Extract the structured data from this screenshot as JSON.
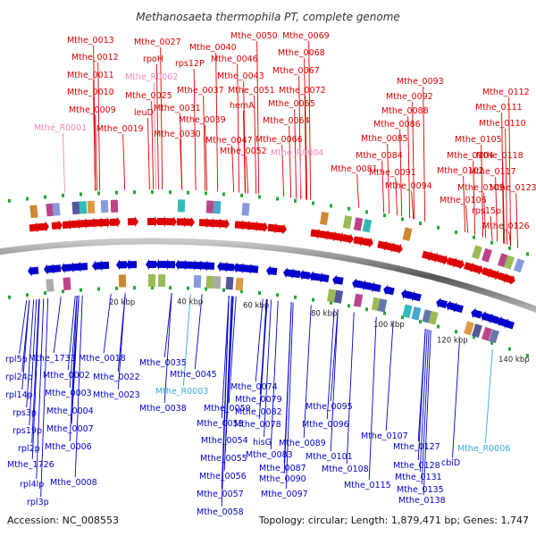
{
  "title": "Methanosaeta thermophila PT, complete genome",
  "accession": "Accession: NC_008553",
  "topology": "Topology: circular; Length: 1,879,471 bp; Genes: 1,747",
  "colors": {
    "top": "#dd0000",
    "bottom": "#0000cc",
    "rna_top": "#ee88bb",
    "rna_bottom": "#33aadd"
  },
  "kbp_ticks": [
    "20 kbp",
    "40 kbp",
    "60 kbp",
    "80 kbp",
    "100 kbp",
    "120 kbp",
    "140 kbp"
  ],
  "top_labels": [
    {
      "text": "Mthe_0013"
    },
    {
      "text": "Mthe_0012"
    },
    {
      "text": "Mthe_0011"
    },
    {
      "text": "Mthe_0010"
    },
    {
      "text": "Mthe_0009"
    },
    {
      "text": "Mthe_R0001",
      "rna": true
    },
    {
      "text": "Mthe_0019"
    },
    {
      "text": "Mthe_0027"
    },
    {
      "text": "rpoH"
    },
    {
      "text": "Mthe_R0002",
      "rna": true
    },
    {
      "text": "Mthe_0025"
    },
    {
      "text": "leuD"
    },
    {
      "text": "Mthe_0031"
    },
    {
      "text": "Mthe_0030"
    },
    {
      "text": "Mthe_0040"
    },
    {
      "text": "rps12P"
    },
    {
      "text": "Mthe_0037"
    },
    {
      "text": "Mthe_0039"
    },
    {
      "text": "Mthe_0046"
    },
    {
      "text": "Mthe_0043"
    },
    {
      "text": "Mthe_0047"
    },
    {
      "text": "Mthe_0050"
    },
    {
      "text": "Mthe_0051"
    },
    {
      "text": "hemA"
    },
    {
      "text": "Mthe_0052"
    },
    {
      "text": "Mthe_0069"
    },
    {
      "text": "Mthe_0068"
    },
    {
      "text": "Mthe_0067"
    },
    {
      "text": "Mthe_0072"
    },
    {
      "text": "Mthe_0065"
    },
    {
      "text": "Mthe_0064"
    },
    {
      "text": "Mthe_0066"
    },
    {
      "text": "Mthe_R0004",
      "rna": true
    },
    {
      "text": "Mthe_0093"
    },
    {
      "text": "Mthe_0092"
    },
    {
      "text": "Mthe_0088"
    },
    {
      "text": "Mthe_0086"
    },
    {
      "text": "Mthe_0085"
    },
    {
      "text": "Mthe_0084"
    },
    {
      "text": "Mthe_0081"
    },
    {
      "text": "Mthe_0091"
    },
    {
      "text": "Mthe_0094"
    },
    {
      "text": "Mthe_0112"
    },
    {
      "text": "Mthe_0111"
    },
    {
      "text": "Mthe_0110"
    },
    {
      "text": "Mthe_0105"
    },
    {
      "text": "Mthe_0104"
    },
    {
      "text": "Mthe_0118"
    },
    {
      "text": "Mthe_0102"
    },
    {
      "text": "Mthe_0117"
    },
    {
      "text": "Mthe_0109"
    },
    {
      "text": "Mthe_0123"
    },
    {
      "text": "Mthe_0106"
    },
    {
      "text": "rps15p"
    },
    {
      "text": "Mthe_0126"
    }
  ],
  "bottom_labels": [
    {
      "text": "rpl5p"
    },
    {
      "text": "rpl24p"
    },
    {
      "text": "rpl14p"
    },
    {
      "text": "rps3p"
    },
    {
      "text": "rps19p"
    },
    {
      "text": "rpl2p"
    },
    {
      "text": "Mthe_1726"
    },
    {
      "text": "rpl4lp"
    },
    {
      "text": "rpl3p"
    },
    {
      "text": "Mthe_1733"
    },
    {
      "text": "Mthe_0002"
    },
    {
      "text": "Mthe_0003"
    },
    {
      "text": "Mthe_0004"
    },
    {
      "text": "Mthe_0007"
    },
    {
      "text": "Mthe_0006"
    },
    {
      "text": "Mthe_0008"
    },
    {
      "text": "Mthe_0018"
    },
    {
      "text": "Mthe_0022"
    },
    {
      "text": "Mthe_0023"
    },
    {
      "text": "Mthe_0035"
    },
    {
      "text": "Mthe_0045"
    },
    {
      "text": "Mthe_R0003",
      "rna": true
    },
    {
      "text": "Mthe_0038"
    },
    {
      "text": "Mthe_0059"
    },
    {
      "text": "Mthe_0053"
    },
    {
      "text": "Mthe_0054"
    },
    {
      "text": "Mthe_0055"
    },
    {
      "text": "Mthe_0056"
    },
    {
      "text": "Mthe_0057"
    },
    {
      "text": "Mthe_0058"
    },
    {
      "text": "Mthe_0074"
    },
    {
      "text": "Mthe_0079"
    },
    {
      "text": "Mthe_0082"
    },
    {
      "text": "Mthe_0078"
    },
    {
      "text": "hisG"
    },
    {
      "text": "Mthe_0083"
    },
    {
      "text": "Mthe_0087"
    },
    {
      "text": "Mthe_0090"
    },
    {
      "text": "Mthe_0097"
    },
    {
      "text": "Mthe_0095"
    },
    {
      "text": "Mthe_0096"
    },
    {
      "text": "Mthe_0089"
    },
    {
      "text": "Mthe_0101"
    },
    {
      "text": "Mthe_0108"
    },
    {
      "text": "Mthe_0107"
    },
    {
      "text": "Mthe_0115"
    },
    {
      "text": "Mthe_0127"
    },
    {
      "text": "Mthe_0128"
    },
    {
      "text": "Mthe_0131"
    },
    {
      "text": "Mthe_0135"
    },
    {
      "text": "Mthe_0138"
    },
    {
      "text": "cbiD"
    },
    {
      "text": "Mthe_R0006",
      "rna": true
    }
  ]
}
